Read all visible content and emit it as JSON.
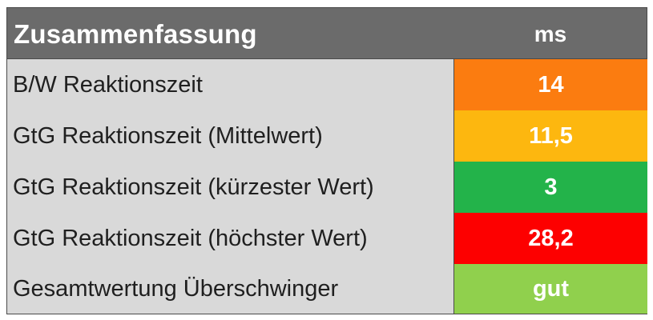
{
  "header": {
    "title": "Zusammenfassung",
    "unit": "ms"
  },
  "rows": [
    {
      "label": "B/W Reaktionszeit",
      "value": "14",
      "color": "#fb7c10"
    },
    {
      "label": "GtG Reaktionszeit (Mittelwert)",
      "value": "11,5",
      "color": "#fdb70f"
    },
    {
      "label": "GtG Reaktionszeit (kürzester Wert)",
      "value": "3",
      "color": "#23b34a"
    },
    {
      "label": "GtG Reaktionszeit (höchster Wert)",
      "value": "28,2",
      "color": "#fd0000"
    },
    {
      "label": "Gesamtwertung Überschwinger",
      "value": "gut",
      "color": "#90d04d"
    }
  ],
  "colors": {
    "header_bg": "#6b6b6b",
    "label_bg": "#d9d9d9",
    "border": "#4a4a4a"
  }
}
